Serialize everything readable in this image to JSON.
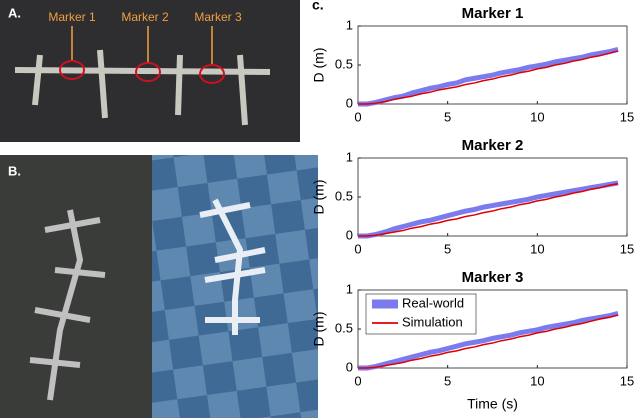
{
  "panels": {
    "a_label": "A.",
    "b_label": "B.",
    "c_label": "c.",
    "markers": [
      "Marker 1",
      "Marker 2",
      "Marker 3"
    ]
  },
  "chart_data": [
    {
      "type": "line",
      "title": "Marker 1",
      "y_label": "D (m)",
      "x": [
        0,
        0.5,
        1,
        1.5,
        2,
        2.5,
        3,
        3.5,
        4,
        4.5,
        5,
        5.5,
        6,
        6.5,
        7,
        7.5,
        8,
        8.5,
        9,
        9.5,
        10,
        10.5,
        11,
        11.5,
        12,
        12.5,
        13,
        13.5,
        14,
        14.5
      ],
      "series": [
        {
          "color": "#7b7bf0",
          "values": [
            0,
            0,
            0.02,
            0.05,
            0.08,
            0.1,
            0.14,
            0.17,
            0.2,
            0.22,
            0.25,
            0.27,
            0.31,
            0.33,
            0.35,
            0.37,
            0.4,
            0.42,
            0.44,
            0.47,
            0.49,
            0.51,
            0.54,
            0.56,
            0.58,
            0.6,
            0.63,
            0.65,
            0.67,
            0.7
          ]
        },
        {
          "color": "#e00000",
          "values": [
            0,
            0,
            0.01,
            0.03,
            0.06,
            0.08,
            0.1,
            0.13,
            0.15,
            0.18,
            0.2,
            0.22,
            0.25,
            0.27,
            0.3,
            0.32,
            0.35,
            0.37,
            0.4,
            0.42,
            0.45,
            0.47,
            0.5,
            0.52,
            0.55,
            0.57,
            0.6,
            0.62,
            0.65,
            0.68
          ]
        }
      ],
      "xlim": [
        0,
        15
      ],
      "ylim": [
        0,
        1
      ],
      "xticks": [
        0,
        5,
        10,
        15
      ],
      "yticks": [
        0,
        0.5,
        1
      ]
    },
    {
      "type": "line",
      "title": "Marker 2",
      "y_label": "D (m)",
      "x": [
        0,
        0.5,
        1,
        1.5,
        2,
        2.5,
        3,
        3.5,
        4,
        4.5,
        5,
        5.5,
        6,
        6.5,
        7,
        7.5,
        8,
        8.5,
        9,
        9.5,
        10,
        10.5,
        11,
        11.5,
        12,
        12.5,
        13,
        13.5,
        14,
        14.5
      ],
      "series": [
        {
          "color": "#7b7bf0",
          "values": [
            0,
            0,
            0.02,
            0.05,
            0.09,
            0.12,
            0.15,
            0.18,
            0.2,
            0.23,
            0.26,
            0.29,
            0.32,
            0.34,
            0.37,
            0.39,
            0.41,
            0.43,
            0.45,
            0.47,
            0.5,
            0.52,
            0.54,
            0.56,
            0.58,
            0.6,
            0.62,
            0.64,
            0.66,
            0.68
          ]
        },
        {
          "color": "#e00000",
          "values": [
            0,
            0,
            0.01,
            0.03,
            0.05,
            0.07,
            0.1,
            0.12,
            0.15,
            0.17,
            0.2,
            0.22,
            0.25,
            0.27,
            0.3,
            0.32,
            0.35,
            0.37,
            0.4,
            0.42,
            0.45,
            0.47,
            0.5,
            0.52,
            0.55,
            0.57,
            0.6,
            0.62,
            0.65,
            0.67
          ]
        }
      ],
      "xlim": [
        0,
        15
      ],
      "ylim": [
        0,
        1
      ],
      "xticks": [
        0,
        5,
        10,
        15
      ],
      "yticks": [
        0,
        0.5,
        1
      ]
    },
    {
      "type": "line",
      "title": "Marker 3",
      "y_label": "D (m)",
      "x_label": "Time (s)",
      "x": [
        0,
        0.5,
        1,
        1.5,
        2,
        2.5,
        3,
        3.5,
        4,
        4.5,
        5,
        5.5,
        6,
        6.5,
        7,
        7.5,
        8,
        8.5,
        9,
        9.5,
        10,
        10.5,
        11,
        11.5,
        12,
        12.5,
        13,
        13.5,
        14,
        14.5
      ],
      "series": [
        {
          "name": "Real-world",
          "color": "#7b7bf0",
          "values": [
            0,
            0,
            0.02,
            0.05,
            0.08,
            0.11,
            0.14,
            0.17,
            0.2,
            0.22,
            0.25,
            0.28,
            0.31,
            0.33,
            0.35,
            0.38,
            0.4,
            0.42,
            0.45,
            0.47,
            0.49,
            0.52,
            0.54,
            0.56,
            0.58,
            0.61,
            0.63,
            0.65,
            0.67,
            0.7
          ]
        },
        {
          "name": "Simulation",
          "color": "#e00000",
          "values": [
            0,
            0,
            0.01,
            0.03,
            0.05,
            0.07,
            0.1,
            0.12,
            0.15,
            0.17,
            0.2,
            0.22,
            0.25,
            0.27,
            0.3,
            0.32,
            0.35,
            0.37,
            0.4,
            0.42,
            0.45,
            0.47,
            0.5,
            0.52,
            0.55,
            0.57,
            0.6,
            0.63,
            0.65,
            0.68
          ]
        }
      ],
      "xlim": [
        0,
        15
      ],
      "ylim": [
        0,
        1
      ],
      "xticks": [
        0,
        5,
        10,
        15
      ],
      "yticks": [
        0,
        0.5,
        1
      ],
      "legend": "upper left"
    }
  ]
}
